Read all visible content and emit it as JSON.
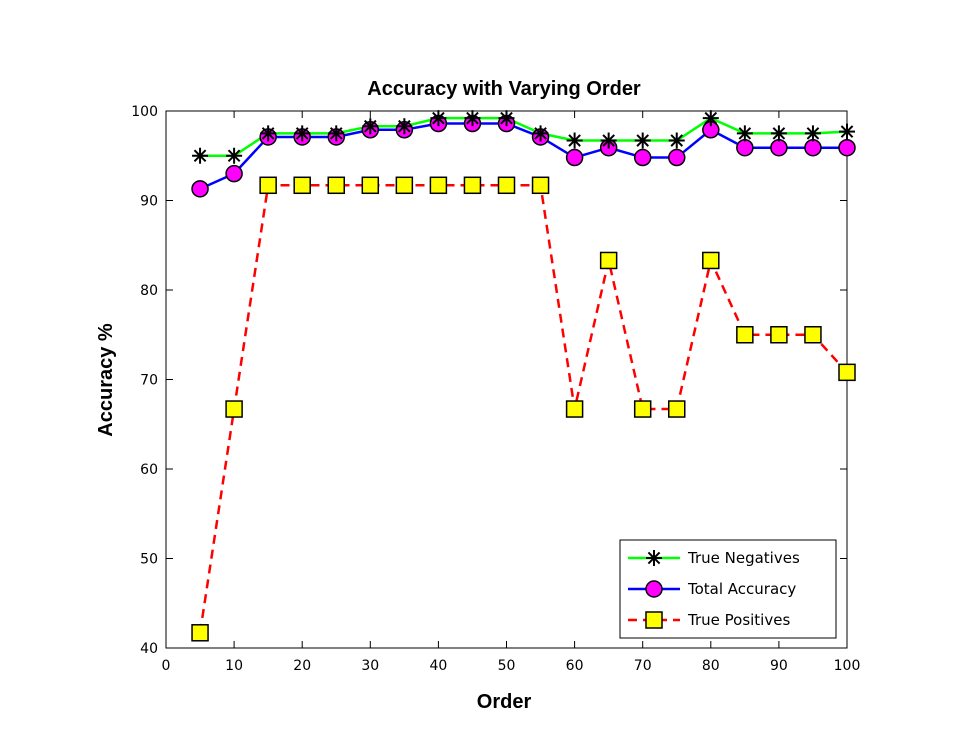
{
  "chart_data": {
    "type": "line",
    "title": "Accuracy with Varying Order",
    "xlabel": "Order",
    "ylabel": "Accuracy %",
    "xlim": [
      0,
      100
    ],
    "ylim": [
      40,
      100
    ],
    "xticks": [
      0,
      10,
      20,
      30,
      40,
      50,
      60,
      70,
      80,
      90,
      100
    ],
    "yticks": [
      40,
      50,
      60,
      70,
      80,
      90,
      100
    ],
    "grid": false,
    "legend_position": "bottom-right",
    "x": [
      5,
      10,
      15,
      20,
      25,
      30,
      35,
      40,
      45,
      50,
      55,
      60,
      65,
      70,
      75,
      80,
      85,
      90,
      95,
      100
    ],
    "series": [
      {
        "name": "True Negatives",
        "color": "#00ff00",
        "marker": "asterisk",
        "line_style": "solid",
        "values": [
          95.0,
          95.0,
          97.5,
          97.5,
          97.5,
          98.3,
          98.3,
          99.2,
          99.2,
          99.2,
          97.5,
          96.7,
          96.7,
          96.7,
          96.7,
          99.2,
          97.5,
          97.5,
          97.5,
          97.7
        ]
      },
      {
        "name": "Total Accuracy",
        "color": "#0000ff",
        "marker_color": "#ff00ff",
        "marker": "circle",
        "line_style": "solid",
        "values": [
          91.3,
          93.0,
          97.1,
          97.1,
          97.1,
          97.9,
          97.9,
          98.6,
          98.6,
          98.6,
          97.1,
          94.8,
          95.9,
          94.8,
          94.8,
          97.9,
          95.9,
          95.9,
          95.9,
          95.9
        ]
      },
      {
        "name": "True Positives",
        "color": "#ff0000",
        "marker_color": "#ffff00",
        "marker": "square",
        "line_style": "dashed",
        "values": [
          41.7,
          66.7,
          91.7,
          91.7,
          91.7,
          91.7,
          91.7,
          91.7,
          91.7,
          91.7,
          91.7,
          66.7,
          83.3,
          66.7,
          66.7,
          83.3,
          75.0,
          75.0,
          75.0,
          70.8
        ]
      }
    ]
  }
}
